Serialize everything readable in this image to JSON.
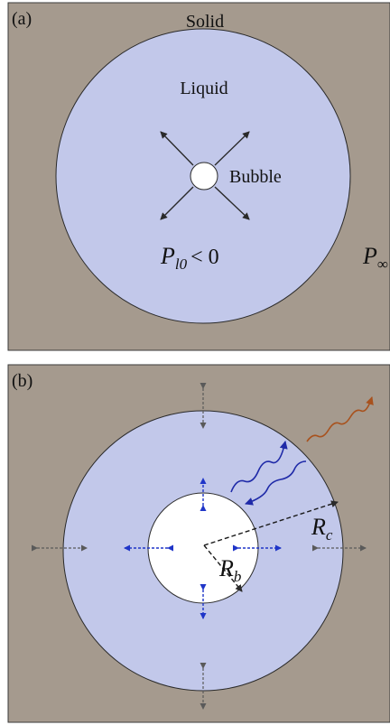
{
  "panel_a": {
    "tag": "(a)",
    "solid_label": "Solid",
    "liquid_label": "Liquid",
    "bubble_label": "Bubble",
    "pressure_symbol": "P",
    "pressure_subscript": "l0",
    "pressure_relation": "< 0",
    "far_pressure_symbol": "P",
    "far_pressure_subscript": "∞"
  },
  "panel_b": {
    "tag": "(b)",
    "rc_symbol": "R",
    "rc_subscript": "c",
    "rb_symbol": "R",
    "rb_subscript": "b"
  },
  "colors": {
    "solid": "#a59a8e",
    "liquid": "#c2c8ea",
    "bubble": "#ffffff",
    "outline": "#2a2a2a",
    "arrow_dark": "#2a2a2a",
    "arrow_blue": "#1f35c8",
    "arrow_gray": "#5a5a5a",
    "wave_blue": "#1f2aa8",
    "wave_brown": "#a8521e"
  }
}
